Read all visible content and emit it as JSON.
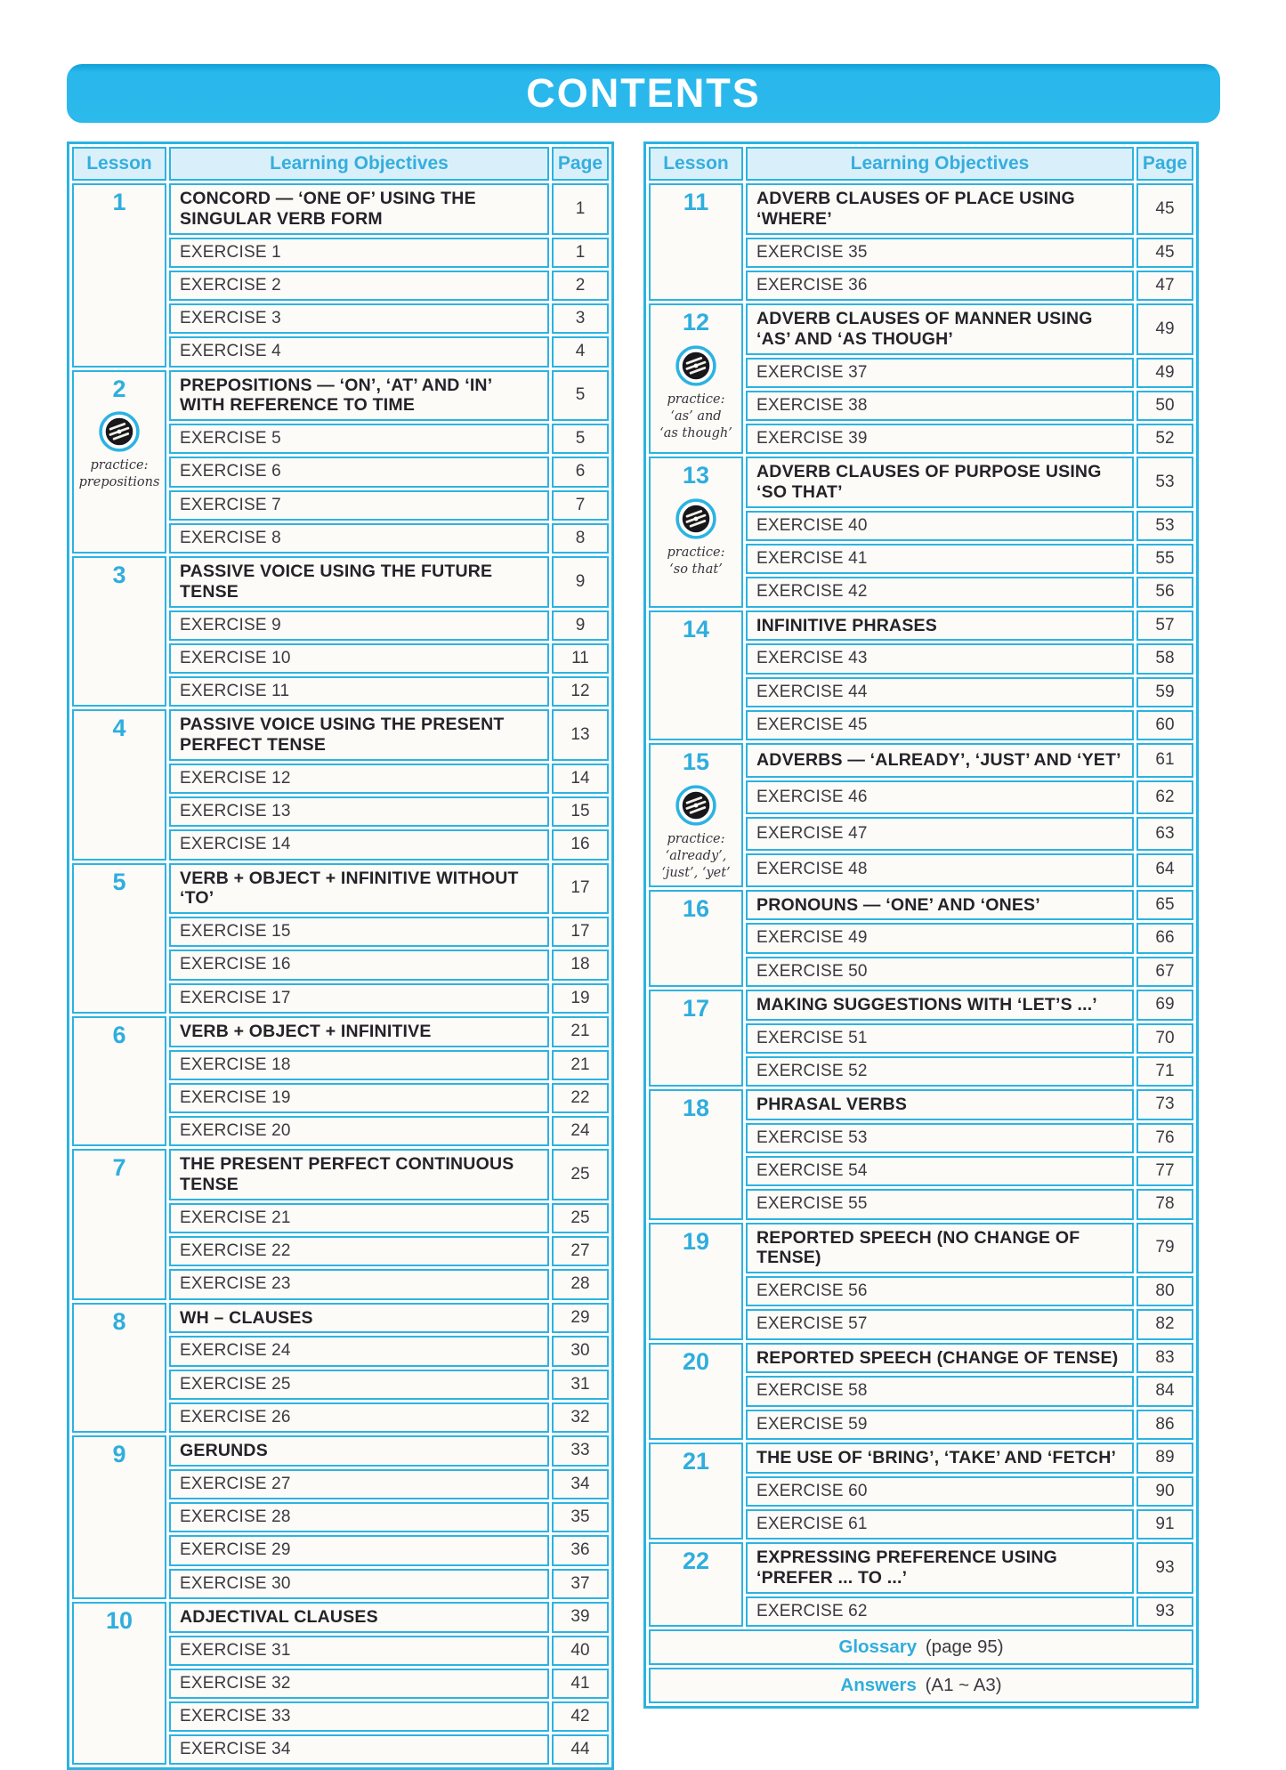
{
  "page_title": "CONTENTS",
  "colors": {
    "accent_cyan": "#2cb3e2",
    "header_fill": "#d9f0fb",
    "title_bar": "#29b8ec",
    "dark_text": "#232329"
  },
  "table_headers": {
    "lesson": "Lesson",
    "objectives": "Learning Objectives",
    "page": "Page"
  },
  "left_table": {
    "lessons": [
      {
        "number": "1",
        "rows": [
          {
            "text": "CONCORD — ‘ONE OF’ USING THE SINGULAR VERB FORM",
            "page": "1"
          },
          {
            "text": "EXERCISE 1",
            "page": "1"
          },
          {
            "text": "EXERCISE 2",
            "page": "2"
          },
          {
            "text": "EXERCISE 3",
            "page": "3"
          },
          {
            "text": "EXERCISE 4",
            "page": "4"
          }
        ]
      },
      {
        "number": "2",
        "practice": [
          "practice:",
          "prepositions"
        ],
        "rows": [
          {
            "text": "PREPOSITIONS — ‘ON’, ‘AT’ AND ‘IN’ WITH REFERENCE TO TIME",
            "page": "5"
          },
          {
            "text": "EXERCISE 5",
            "page": "5"
          },
          {
            "text": "EXERCISE 6",
            "page": "6"
          },
          {
            "text": "EXERCISE 7",
            "page": "7"
          },
          {
            "text": "EXERCISE 8",
            "page": "8"
          }
        ]
      },
      {
        "number": "3",
        "rows": [
          {
            "text": "PASSIVE VOICE USING THE FUTURE TENSE",
            "page": "9"
          },
          {
            "text": "EXERCISE 9",
            "page": "9"
          },
          {
            "text": "EXERCISE 10",
            "page": "11"
          },
          {
            "text": "EXERCISE 11",
            "page": "12"
          }
        ]
      },
      {
        "number": "4",
        "rows": [
          {
            "text": "PASSIVE VOICE USING THE PRESENT PERFECT TENSE",
            "page": "13"
          },
          {
            "text": "EXERCISE 12",
            "page": "14"
          },
          {
            "text": "EXERCISE 13",
            "page": "15"
          },
          {
            "text": "EXERCISE 14",
            "page": "16"
          }
        ]
      },
      {
        "number": "5",
        "rows": [
          {
            "text": "VERB + OBJECT + INFINITIVE WITHOUT ‘TO’",
            "page": "17"
          },
          {
            "text": "EXERCISE 15",
            "page": "17"
          },
          {
            "text": "EXERCISE 16",
            "page": "18"
          },
          {
            "text": "EXERCISE 17",
            "page": "19"
          }
        ]
      },
      {
        "number": "6",
        "rows": [
          {
            "text": "VERB + OBJECT + INFINITIVE",
            "page": "21"
          },
          {
            "text": "EXERCISE 18",
            "page": "21"
          },
          {
            "text": "EXERCISE 19",
            "page": "22"
          },
          {
            "text": "EXERCISE 20",
            "page": "24"
          }
        ]
      },
      {
        "number": "7",
        "rows": [
          {
            "text": "THE PRESENT PERFECT CONTINUOUS TENSE",
            "page": "25"
          },
          {
            "text": "EXERCISE 21",
            "page": "25"
          },
          {
            "text": "EXERCISE 22",
            "page": "27"
          },
          {
            "text": "EXERCISE 23",
            "page": "28"
          }
        ]
      },
      {
        "number": "8",
        "rows": [
          {
            "text": "WH – CLAUSES",
            "page": "29"
          },
          {
            "text": "EXERCISE 24",
            "page": "30"
          },
          {
            "text": "EXERCISE 25",
            "page": "31"
          },
          {
            "text": "EXERCISE 26",
            "page": "32"
          }
        ]
      },
      {
        "number": "9",
        "rows": [
          {
            "text": "GERUNDS",
            "page": "33"
          },
          {
            "text": "EXERCISE 27",
            "page": "34"
          },
          {
            "text": "EXERCISE 28",
            "page": "35"
          },
          {
            "text": "EXERCISE 29",
            "page": "36"
          },
          {
            "text": "EXERCISE 30",
            "page": "37"
          }
        ]
      },
      {
        "number": "10",
        "rows": [
          {
            "text": "ADJECTIVAL CLAUSES",
            "page": "39"
          },
          {
            "text": "EXERCISE 31",
            "page": "40"
          },
          {
            "text": "EXERCISE 32",
            "page": "41"
          },
          {
            "text": "EXERCISE 33",
            "page": "42"
          },
          {
            "text": "EXERCISE 34",
            "page": "44"
          }
        ]
      }
    ]
  },
  "right_table": {
    "lessons": [
      {
        "number": "11",
        "rows": [
          {
            "text": "ADVERB CLAUSES OF PLACE USING ‘WHERE’",
            "page": "45"
          },
          {
            "text": "EXERCISE 35",
            "page": "45"
          },
          {
            "text": "EXERCISE 36",
            "page": "47"
          }
        ]
      },
      {
        "number": "12",
        "practice": [
          "practice:",
          "‘as’ and",
          "‘as though’"
        ],
        "rows": [
          {
            "text": "ADVERB CLAUSES OF MANNER USING ‘AS’ AND ‘AS THOUGH’",
            "page": "49"
          },
          {
            "text": "EXERCISE 37",
            "page": "49"
          },
          {
            "text": "EXERCISE 38",
            "page": "50"
          },
          {
            "text": "EXERCISE 39",
            "page": "52"
          }
        ]
      },
      {
        "number": "13",
        "practice": [
          "practice:",
          "‘so that’"
        ],
        "rows": [
          {
            "text": "ADVERB CLAUSES OF PURPOSE USING ‘SO THAT’",
            "page": "53"
          },
          {
            "text": "EXERCISE 40",
            "page": "53"
          },
          {
            "text": "EXERCISE 41",
            "page": "55"
          },
          {
            "text": "EXERCISE 42",
            "page": "56"
          }
        ]
      },
      {
        "number": "14",
        "rows": [
          {
            "text": "INFINITIVE PHRASES",
            "page": "57"
          },
          {
            "text": "EXERCISE 43",
            "page": "58"
          },
          {
            "text": "EXERCISE 44",
            "page": "59"
          },
          {
            "text": "EXERCISE 45",
            "page": "60"
          }
        ]
      },
      {
        "number": "15",
        "practice": [
          "practice:",
          "‘already’,",
          "‘just’, ‘yet’"
        ],
        "rows": [
          {
            "text": "ADVERBS — ‘ALREADY’, ‘JUST’ AND ‘YET’",
            "page": "61"
          },
          {
            "text": "EXERCISE 46",
            "page": "62"
          },
          {
            "text": "EXERCISE 47",
            "page": "63"
          },
          {
            "text": "EXERCISE 48",
            "page": "64"
          }
        ]
      },
      {
        "number": "16",
        "rows": [
          {
            "text": "PRONOUNS — ‘ONE’ AND ‘ONES’",
            "page": "65"
          },
          {
            "text": "EXERCISE 49",
            "page": "66"
          },
          {
            "text": "EXERCISE 50",
            "page": "67"
          }
        ]
      },
      {
        "number": "17",
        "rows": [
          {
            "text": "MAKING SUGGESTIONS WITH ‘LET’S ...’",
            "page": "69"
          },
          {
            "text": "EXERCISE 51",
            "page": "70"
          },
          {
            "text": "EXERCISE 52",
            "page": "71"
          }
        ]
      },
      {
        "number": "18",
        "rows": [
          {
            "text": "PHRASAL VERBS",
            "page": "73"
          },
          {
            "text": "EXERCISE 53",
            "page": "76"
          },
          {
            "text": "EXERCISE 54",
            "page": "77"
          },
          {
            "text": "EXERCISE 55",
            "page": "78"
          }
        ]
      },
      {
        "number": "19",
        "rows": [
          {
            "text": "REPORTED SPEECH (NO CHANGE OF TENSE)",
            "page": "79"
          },
          {
            "text": "EXERCISE 56",
            "page": "80"
          },
          {
            "text": "EXERCISE 57",
            "page": "82"
          }
        ]
      },
      {
        "number": "20",
        "rows": [
          {
            "text": "REPORTED SPEECH (CHANGE OF TENSE)",
            "page": "83"
          },
          {
            "text": "EXERCISE 58",
            "page": "84"
          },
          {
            "text": "EXERCISE 59",
            "page": "86"
          }
        ]
      },
      {
        "number": "21",
        "rows": [
          {
            "text": "THE USE OF ‘BRING’, ‘TAKE’ AND ‘FETCH’",
            "page": "89"
          },
          {
            "text": "EXERCISE 60",
            "page": "90"
          },
          {
            "text": "EXERCISE 61",
            "page": "91"
          }
        ]
      },
      {
        "number": "22",
        "rows": [
          {
            "text": "EXPRESSING PREFERENCE USING ‘PREFER ... TO ...’",
            "page": "93"
          },
          {
            "text": "EXERCISE 62",
            "page": "93"
          }
        ]
      }
    ],
    "footers": [
      {
        "label": "Glossary",
        "detail": "(page 95)"
      },
      {
        "label": "Answers",
        "detail": "(A1 ~ A3)"
      }
    ]
  }
}
